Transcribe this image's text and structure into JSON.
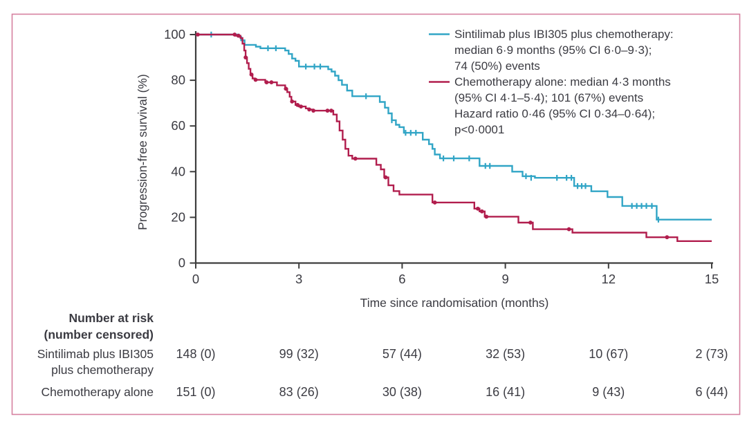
{
  "figure": {
    "background": "#ffffff",
    "border_color": "#d6809f",
    "text_color": "#3b3b42",
    "axis_color": "#3d3d3d"
  },
  "chart_data": {
    "type": "line",
    "subtype": "kaplan-meier-step",
    "title": "",
    "xlabel": "Time since randomisation (months)",
    "ylabel": "Progression-free survival (%)",
    "xlim": [
      0,
      15
    ],
    "ylim": [
      0,
      100
    ],
    "x_ticks": [
      0,
      3,
      6,
      9,
      12,
      15
    ],
    "y_ticks": [
      100,
      80,
      60,
      40,
      20,
      0
    ],
    "grid": false,
    "legend_position": "top-right-inside",
    "series": [
      {
        "name": "Sintilimab plus IBI305 plus chemotherapy",
        "color": "#31a5c6",
        "censor_marker": "tick",
        "steps": [
          [
            0,
            100
          ],
          [
            1.25,
            99
          ],
          [
            1.32,
            97.5
          ],
          [
            1.42,
            95.5
          ],
          [
            1.75,
            94.7
          ],
          [
            1.88,
            94
          ],
          [
            2.6,
            93
          ],
          [
            2.7,
            91.5
          ],
          [
            2.8,
            89.5
          ],
          [
            2.9,
            88.5
          ],
          [
            3.0,
            86
          ],
          [
            3.85,
            84.8
          ],
          [
            3.95,
            83.8
          ],
          [
            4.05,
            82
          ],
          [
            4.15,
            80
          ],
          [
            4.25,
            78
          ],
          [
            4.4,
            75.5
          ],
          [
            4.55,
            73
          ],
          [
            5.35,
            70.5
          ],
          [
            5.5,
            68
          ],
          [
            5.6,
            65.5
          ],
          [
            5.7,
            62.5
          ],
          [
            5.82,
            60.5
          ],
          [
            5.92,
            59.5
          ],
          [
            6.05,
            57
          ],
          [
            6.6,
            54
          ],
          [
            6.78,
            52
          ],
          [
            6.88,
            50
          ],
          [
            6.95,
            47.5
          ],
          [
            7.1,
            45.8
          ],
          [
            8.25,
            42.5
          ],
          [
            9.2,
            40
          ],
          [
            9.5,
            38
          ],
          [
            9.86,
            37.3
          ],
          [
            11.0,
            33.7
          ],
          [
            11.5,
            31.4
          ],
          [
            11.97,
            28.9
          ],
          [
            12.4,
            25
          ],
          [
            13.4,
            19
          ]
        ],
        "censors": [
          [
            0.45,
            100
          ],
          [
            2.1,
            94
          ],
          [
            2.33,
            94
          ],
          [
            3.2,
            86
          ],
          [
            3.45,
            86
          ],
          [
            3.62,
            86
          ],
          [
            4.95,
            73
          ],
          [
            5.7,
            62.5
          ],
          [
            6.1,
            57
          ],
          [
            6.25,
            57
          ],
          [
            6.4,
            57
          ],
          [
            7.2,
            45.8
          ],
          [
            7.5,
            45.8
          ],
          [
            7.95,
            45.8
          ],
          [
            8.42,
            42.5
          ],
          [
            8.55,
            42.5
          ],
          [
            9.6,
            38
          ],
          [
            9.75,
            37.3
          ],
          [
            10.5,
            37.3
          ],
          [
            10.78,
            37.3
          ],
          [
            10.92,
            37.3
          ],
          [
            11.1,
            33.7
          ],
          [
            11.22,
            33.7
          ],
          [
            11.33,
            33.7
          ],
          [
            12.68,
            25
          ],
          [
            12.82,
            25
          ],
          [
            12.96,
            25
          ],
          [
            13.1,
            25
          ],
          [
            13.26,
            25
          ],
          [
            13.45,
            19
          ]
        ]
      },
      {
        "name": "Chemotherapy alone",
        "color": "#b11d4d",
        "censor_marker": "dot",
        "steps": [
          [
            0,
            100
          ],
          [
            1.15,
            99.5
          ],
          [
            1.3,
            98.5
          ],
          [
            1.36,
            96
          ],
          [
            1.41,
            93
          ],
          [
            1.45,
            90
          ],
          [
            1.49,
            87.5
          ],
          [
            1.54,
            85
          ],
          [
            1.59,
            82.5
          ],
          [
            1.65,
            80.8
          ],
          [
            1.72,
            80.2
          ],
          [
            2.02,
            79.1
          ],
          [
            2.36,
            77.8
          ],
          [
            2.6,
            76.3
          ],
          [
            2.66,
            74.8
          ],
          [
            2.73,
            72.8
          ],
          [
            2.78,
            70.7
          ],
          [
            2.9,
            69.2
          ],
          [
            3.0,
            68.5
          ],
          [
            3.2,
            67.7
          ],
          [
            3.3,
            67.2
          ],
          [
            3.4,
            66.7
          ],
          [
            4.0,
            65
          ],
          [
            4.1,
            62
          ],
          [
            4.18,
            58
          ],
          [
            4.27,
            54
          ],
          [
            4.35,
            50
          ],
          [
            4.44,
            47
          ],
          [
            4.55,
            45.7
          ],
          [
            5.25,
            43
          ],
          [
            5.38,
            41
          ],
          [
            5.48,
            37.5
          ],
          [
            5.6,
            34
          ],
          [
            5.75,
            31.5
          ],
          [
            5.92,
            30
          ],
          [
            6.88,
            26.5
          ],
          [
            8.1,
            23.8
          ],
          [
            8.25,
            22.6
          ],
          [
            8.4,
            20.3
          ],
          [
            9.38,
            17.7
          ],
          [
            9.8,
            14.8
          ],
          [
            10.95,
            13.3
          ],
          [
            13.1,
            11.3
          ],
          [
            14.0,
            9.6
          ]
        ],
        "censors": [
          [
            0.06,
            100
          ],
          [
            1.13,
            100
          ],
          [
            1.24,
            99.5
          ],
          [
            1.45,
            90
          ],
          [
            1.62,
            82.5
          ],
          [
            1.74,
            80.2
          ],
          [
            2.06,
            79.1
          ],
          [
            2.2,
            79.1
          ],
          [
            2.62,
            76.3
          ],
          [
            2.8,
            70.7
          ],
          [
            2.96,
            69.2
          ],
          [
            3.06,
            68.5
          ],
          [
            3.3,
            67.2
          ],
          [
            3.42,
            66.7
          ],
          [
            3.83,
            66.7
          ],
          [
            3.94,
            66.7
          ],
          [
            4.64,
            45.7
          ],
          [
            5.52,
            37.5
          ],
          [
            6.95,
            26.5
          ],
          [
            8.2,
            23.8
          ],
          [
            8.32,
            22.6
          ],
          [
            8.45,
            20.3
          ],
          [
            9.73,
            17.7
          ],
          [
            10.85,
            14.8
          ],
          [
            13.7,
            11.3
          ]
        ]
      }
    ]
  },
  "legend": {
    "entries": [
      {
        "color": "#31a5c6",
        "lines": [
          "Sintilimab plus IBI305 plus chemotherapy:",
          "median 6·9 months (95% CI 6·0–9·3);",
          "74 (50%) events"
        ]
      },
      {
        "color": "#b11d4d",
        "lines": [
          "Chemotherapy alone: median 4·3 months",
          "(95% CI 4·1–5·4); 101 (67%) events",
          "Hazard ratio 0·46 (95% CI 0·34–0·64);",
          "p<0·0001"
        ]
      }
    ]
  },
  "risk_table": {
    "header_lines": [
      "Number at risk",
      "(number censored)"
    ],
    "rows": [
      {
        "label_lines": [
          "Sintilimab plus IBI305",
          "plus chemotherapy"
        ],
        "values": [
          "148 (0)",
          "99 (32)",
          "57 (44)",
          "32 (53)",
          "10 (67)",
          "2 (73)"
        ]
      },
      {
        "label_lines": [
          "Chemotherapy alone"
        ],
        "values": [
          "151 (0)",
          "83 (26)",
          "30 (38)",
          "16 (41)",
          "9 (43)",
          "6 (44)"
        ]
      }
    ]
  }
}
